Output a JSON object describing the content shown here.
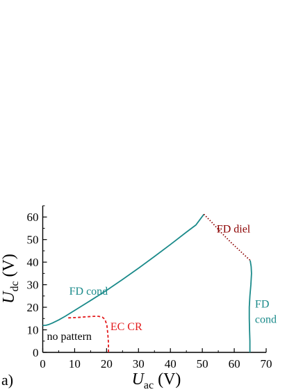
{
  "chart_data": {
    "type": "line",
    "panel_label": "a)",
    "xlabel": {
      "symbol": "U",
      "subscript": "ac",
      "unit": "(V)"
    },
    "ylabel": {
      "symbol": "U",
      "subscript": "dc",
      "unit": "(V)"
    },
    "xlim": [
      0,
      70
    ],
    "ylim": [
      0,
      65
    ],
    "xticks": [
      0,
      10,
      20,
      30,
      40,
      50,
      60,
      70
    ],
    "yticks": [
      0,
      10,
      20,
      30,
      40,
      50,
      60
    ],
    "grid": false,
    "legend": "none",
    "series": [
      {
        "style": "solid",
        "color": "#1a8a8a",
        "points": [
          [
            0,
            11.9
          ],
          [
            1,
            12.0
          ],
          [
            2,
            12.4
          ],
          [
            3,
            13.0
          ],
          [
            5,
            14.4
          ],
          [
            7,
            16.0
          ],
          [
            10,
            18.6
          ],
          [
            15,
            23.0
          ],
          [
            20,
            27.5
          ],
          [
            25,
            32.3
          ],
          [
            30,
            37.3
          ],
          [
            35,
            42.5
          ],
          [
            40,
            47.8
          ],
          [
            45,
            53.3
          ],
          [
            48,
            56.5
          ],
          [
            50.5,
            61.2
          ]
        ]
      },
      {
        "style": "dotted",
        "color": "#8b0000",
        "points": [
          [
            50.5,
            61.2
          ],
          [
            53,
            57.6
          ],
          [
            56,
            53.0
          ],
          [
            59,
            48.7
          ],
          [
            62,
            44.7
          ],
          [
            65,
            40.8
          ]
        ]
      },
      {
        "style": "solid",
        "color": "#1a8a8a",
        "points": [
          [
            65,
            40.8
          ],
          [
            65.3,
            38.0
          ],
          [
            65.4,
            35.0
          ],
          [
            65.2,
            30.0
          ],
          [
            64.9,
            25.0
          ],
          [
            64.7,
            20.0
          ],
          [
            64.7,
            15.0
          ],
          [
            64.8,
            10.0
          ],
          [
            64.9,
            5.0
          ],
          [
            64.9,
            0
          ]
        ]
      },
      {
        "style": "dashed",
        "color": "#e31a1c",
        "points": [
          [
            8,
            15.3
          ],
          [
            10,
            15.4
          ],
          [
            12,
            15.6
          ],
          [
            14,
            15.8
          ],
          [
            16,
            16.0
          ],
          [
            17.5,
            16.0
          ],
          [
            18.7,
            15.6
          ],
          [
            19.5,
            14.6
          ],
          [
            20.1,
            12.0
          ],
          [
            20.4,
            8.0
          ],
          [
            20.6,
            4.0
          ],
          [
            20.6,
            0
          ]
        ]
      }
    ],
    "annotations": [
      {
        "text": "FD cond",
        "x": 8.3,
        "y": 25.5,
        "color": "#1a8a8a",
        "lines": [
          "FD cond"
        ]
      },
      {
        "text": "FD diel",
        "x": 54.5,
        "y": 53.2,
        "color": "#8b0000",
        "lines": [
          "FD diel"
        ]
      },
      {
        "text": "FD cond",
        "x": 66.5,
        "y": 19.8,
        "color": "#1a8a8a",
        "lines": [
          "FD",
          "cond"
        ]
      },
      {
        "text": "EC CR",
        "x": 21.2,
        "y": 9.8,
        "color": "#e31a1c",
        "lines": [
          "EC CR"
        ]
      },
      {
        "text": "no pattern",
        "x": 1.3,
        "y": 5.5,
        "color": "#000000",
        "lines": [
          "no pattern"
        ]
      }
    ]
  }
}
